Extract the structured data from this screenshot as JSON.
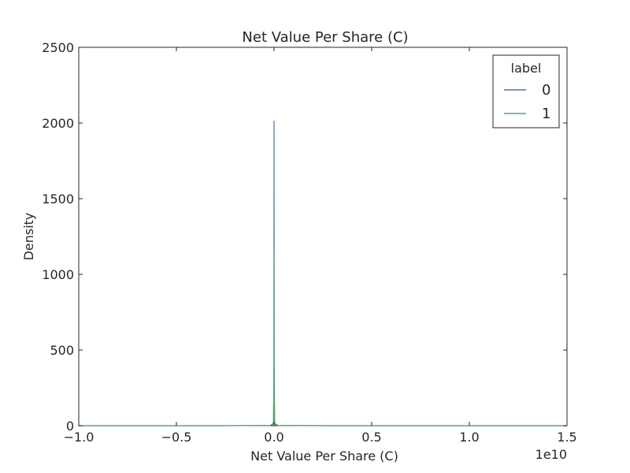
{
  "chart_data": {
    "type": "line",
    "title": "Net Value Per Share (C)",
    "xlabel": "Net Value Per Share (C)",
    "ylabel": "Density",
    "x_offset_label": "1e10",
    "xlim": [
      -1.0,
      1.5
    ],
    "ylim": [
      0,
      2500
    ],
    "x_ticks": [
      -1.0,
      -0.5,
      0.0,
      0.5,
      1.0,
      1.5
    ],
    "x_tick_labels": [
      "−1.0",
      "−0.5",
      "0.0",
      "0.5",
      "1.0",
      "1.5"
    ],
    "y_ticks": [
      0,
      500,
      1000,
      1500,
      2000,
      2500
    ],
    "y_tick_labels": [
      "0",
      "500",
      "1000",
      "1500",
      "2000",
      "2500"
    ],
    "grid": false,
    "legend": {
      "title": "label",
      "placement": "top-right"
    },
    "series": [
      {
        "name": "0",
        "color": "#4c72b0",
        "x": [
          -1.0,
          -0.3,
          -0.02,
          -0.003,
          -0.0008,
          0.0,
          0.0008,
          0.003,
          0.02,
          0.3,
          1.5
        ],
        "y": [
          0,
          0,
          2,
          15,
          400,
          2015,
          400,
          15,
          2,
          0,
          0
        ]
      },
      {
        "name": "1",
        "color": "#55a868",
        "x": [
          -1.0,
          -0.3,
          -0.02,
          -0.003,
          -0.0008,
          0.0,
          0.0008,
          0.003,
          0.02,
          0.3,
          1.5
        ],
        "y": [
          0,
          0,
          1,
          10,
          250,
          1150,
          250,
          10,
          1,
          0,
          0
        ]
      }
    ]
  }
}
